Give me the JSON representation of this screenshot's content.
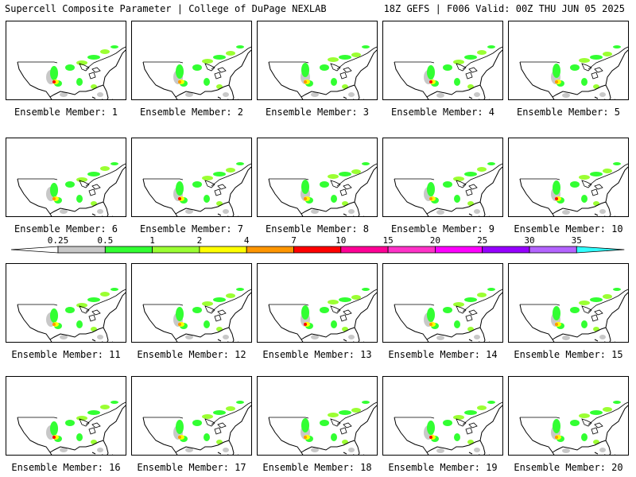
{
  "header": {
    "title_left": "Supercell Composite Parameter | College of DuPage NEXLAB",
    "title_right": "18Z GEFS | F006 Valid: 00Z THU JUN 05 2025"
  },
  "colorbar": {
    "ticks": [
      "0.25",
      "0.5",
      "1",
      "2",
      "4",
      "7",
      "10",
      "15",
      "20",
      "25",
      "30",
      "35"
    ],
    "colors": [
      "#c8c8c8",
      "#32ff32",
      "#9bff32",
      "#ffff00",
      "#ff9600",
      "#ff0000",
      "#ff0096",
      "#ff32c8",
      "#ff00ff",
      "#9600ff",
      "#b464ff",
      "#32ffff"
    ]
  },
  "panels": [
    {
      "label": "Ensemble Member: 1"
    },
    {
      "label": "Ensemble Member: 2"
    },
    {
      "label": "Ensemble Member: 3"
    },
    {
      "label": "Ensemble Member: 4"
    },
    {
      "label": "Ensemble Member: 5"
    },
    {
      "label": "Ensemble Member: 6"
    },
    {
      "label": "Ensemble Member: 7"
    },
    {
      "label": "Ensemble Member: 8"
    },
    {
      "label": "Ensemble Member: 9"
    },
    {
      "label": "Ensemble Member: 10"
    },
    {
      "label": "Ensemble Member: 11"
    },
    {
      "label": "Ensemble Member: 12"
    },
    {
      "label": "Ensemble Member: 13"
    },
    {
      "label": "Ensemble Member: 14"
    },
    {
      "label": "Ensemble Member: 15"
    },
    {
      "label": "Ensemble Member: 16"
    },
    {
      "label": "Ensemble Member: 17"
    },
    {
      "label": "Ensemble Member: 18"
    },
    {
      "label": "Ensemble Member: 19"
    },
    {
      "label": "Ensemble Member: 20"
    }
  ]
}
